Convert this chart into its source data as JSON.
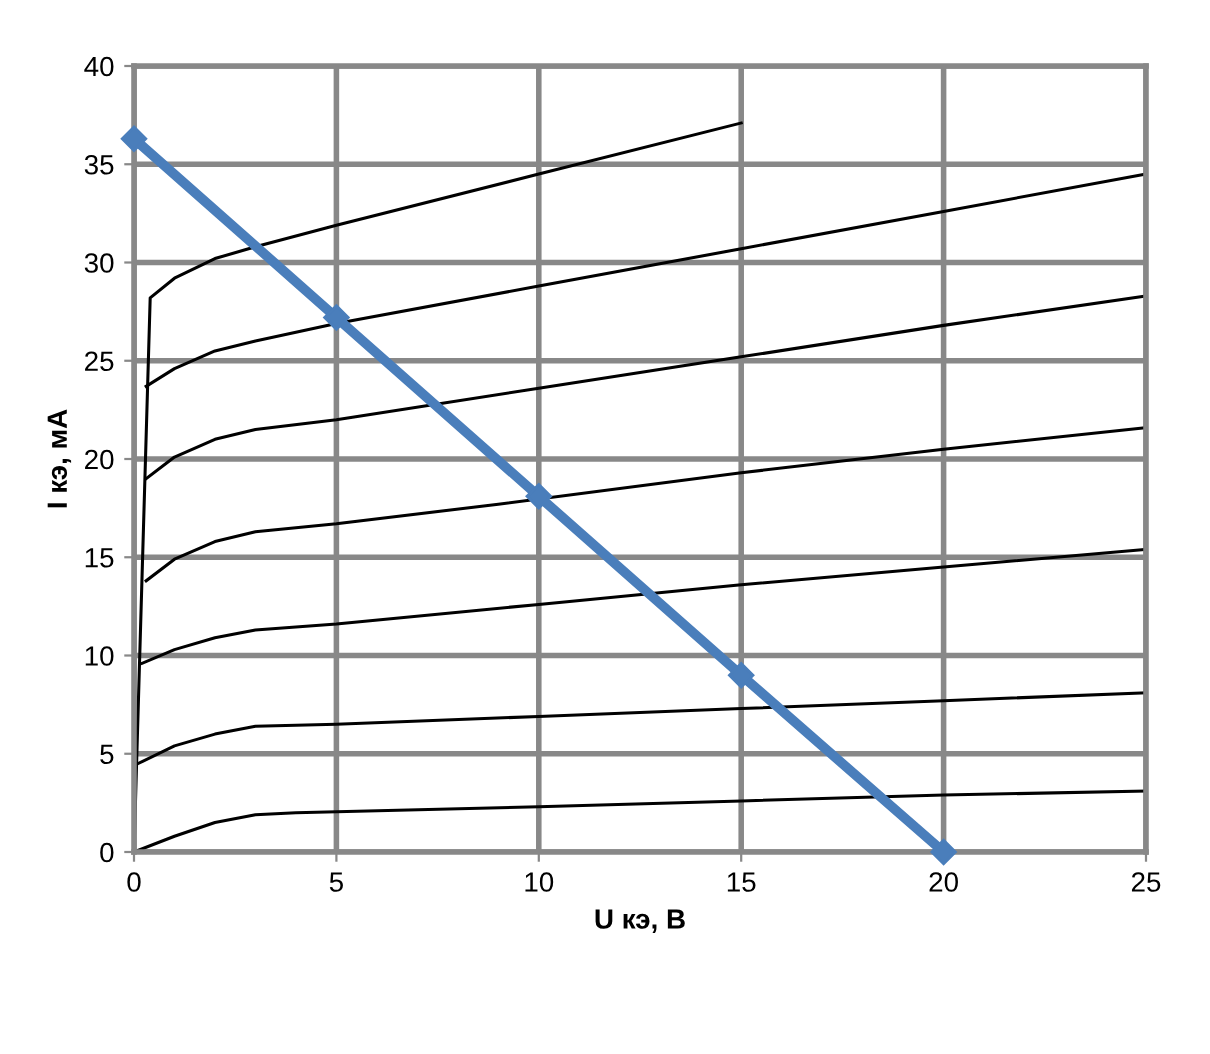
{
  "chart_data": {
    "type": "line",
    "xlabel": "U кэ, В",
    "ylabel": "I кэ, мА",
    "xlim": [
      0,
      25
    ],
    "ylim": [
      0,
      40
    ],
    "xticks": [
      0,
      5,
      10,
      15,
      20,
      25
    ],
    "yticks": [
      0,
      5,
      10,
      15,
      20,
      25,
      30,
      35,
      40
    ],
    "grid": true,
    "legend": false,
    "marker": "none",
    "line_style": "solid",
    "series": [
      {
        "color": "#000000",
        "x": [
          0,
          1,
          2,
          3,
          4,
          10,
          15,
          20,
          25
        ],
        "values": [
          0,
          0.8,
          1.5,
          1.9,
          2.0,
          2.3,
          2.6,
          2.9,
          3.1
        ]
      },
      {
        "color": "#000000",
        "x": [
          0.1,
          1,
          2,
          3,
          5,
          10,
          15,
          20,
          25
        ],
        "values": [
          4.5,
          5.4,
          6.0,
          6.4,
          6.5,
          6.9,
          7.3,
          7.7,
          8.1
        ]
      },
      {
        "color": "#000000",
        "x": [
          0.2,
          1,
          2,
          3,
          5,
          10,
          15,
          20,
          25
        ],
        "values": [
          9.6,
          10.3,
          10.9,
          11.3,
          11.6,
          12.6,
          13.6,
          14.5,
          15.4
        ]
      },
      {
        "color": "#000000",
        "x": [
          0.3,
          1,
          2,
          3,
          5,
          9,
          15,
          20,
          25
        ],
        "values": [
          13.8,
          14.9,
          15.8,
          16.3,
          16.7,
          17.7,
          19.3,
          20.5,
          21.6
        ]
      },
      {
        "color": "#000000",
        "x": [
          0.3,
          1,
          2,
          3,
          5,
          10,
          15,
          20,
          25
        ],
        "values": [
          19,
          20.1,
          21,
          21.5,
          22,
          23.6,
          25.2,
          26.8,
          28.3
        ]
      },
      {
        "color": "#000000",
        "x": [
          0.3,
          1,
          2,
          3,
          5,
          10,
          15,
          20,
          25
        ],
        "values": [
          23.7,
          24.6,
          25.5,
          26,
          26.9,
          28.8,
          30.7,
          32.6,
          34.5
        ]
      },
      {
        "color": "#000000",
        "x": [
          0,
          0.4,
          1,
          2,
          3,
          5,
          10,
          15
        ],
        "values": [
          0,
          28.2,
          29.2,
          30.2,
          30.8,
          31.9,
          34.5,
          37.1
        ]
      },
      {
        "color": "#4a7ebb",
        "marker": "diamond",
        "x": [
          0,
          5,
          10,
          15,
          20
        ],
        "values": [
          36.3,
          27.2,
          18.1,
          9,
          0
        ]
      }
    ]
  }
}
